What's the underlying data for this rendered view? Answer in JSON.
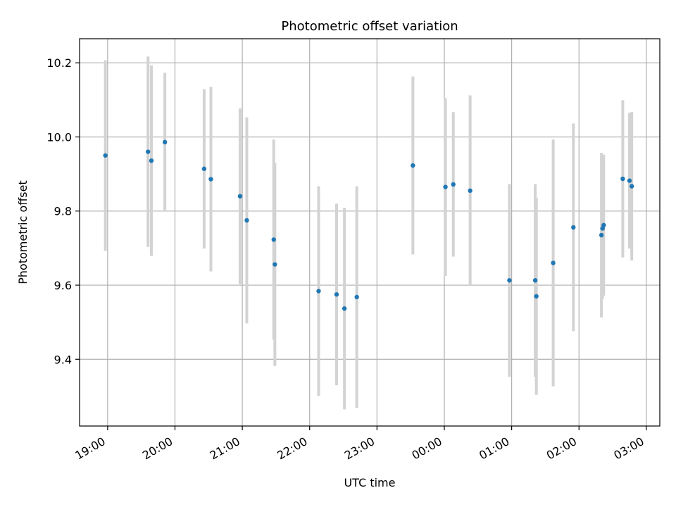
{
  "chart_data": {
    "type": "scatter",
    "title": "Photometric offset variation",
    "xlabel": "UTC time",
    "ylabel": "Photometric offset",
    "grid": true,
    "x_axis_type": "time",
    "xlim": [
      "18:35",
      "03:12"
    ],
    "ylim": [
      9.22,
      10.265
    ],
    "x_ticks": [
      "19:00",
      "20:00",
      "21:00",
      "22:00",
      "23:00",
      "00:00",
      "01:00",
      "02:00",
      "03:00"
    ],
    "y_ticks": [
      "9.4",
      "9.6",
      "9.8",
      "10.0",
      "10.2"
    ],
    "colors": {
      "point": "#1f77b4",
      "errorbar": "#d3d3d3",
      "grid": "#b0b0b0"
    },
    "series": [
      {
        "points": [
          {
            "x": "18:58",
            "y": 9.95,
            "err": 0.257
          },
          {
            "x": "19:36",
            "y": 9.96,
            "err": 0.257
          },
          {
            "x": "19:39",
            "y": 9.936,
            "err": 0.257
          },
          {
            "x": "19:51",
            "y": 9.986,
            "err": 0.187
          },
          {
            "x": "20:26",
            "y": 9.914,
            "err": 0.215
          },
          {
            "x": "20:32",
            "y": 9.886,
            "err": 0.249
          },
          {
            "x": "20:58",
            "y": 9.84,
            "err": 0.237
          },
          {
            "x": "21:04",
            "y": 9.775,
            "err": 0.278
          },
          {
            "x": "21:28",
            "y": 9.723,
            "err": 0.27
          },
          {
            "x": "21:29",
            "y": 9.656,
            "err": 0.274
          },
          {
            "x": "22:08",
            "y": 9.584,
            "err": 0.283
          },
          {
            "x": "22:24",
            "y": 9.575,
            "err": 0.245
          },
          {
            "x": "22:31",
            "y": 9.537,
            "err": 0.272
          },
          {
            "x": "22:42",
            "y": 9.568,
            "err": 0.299
          },
          {
            "x": "23:32",
            "y": 9.923,
            "err": 0.24
          },
          {
            "x": "00:01",
            "y": 9.865,
            "err": 0.24
          },
          {
            "x": "00:08",
            "y": 9.872,
            "err": 0.195
          },
          {
            "x": "00:23",
            "y": 9.855,
            "err": 0.257
          },
          {
            "x": "00:58",
            "y": 9.613,
            "err": 0.26
          },
          {
            "x": "01:21",
            "y": 9.613,
            "err": 0.26
          },
          {
            "x": "01:22",
            "y": 9.57,
            "err": 0.266
          },
          {
            "x": "01:37",
            "y": 9.66,
            "err": 0.333
          },
          {
            "x": "01:55",
            "y": 9.756,
            "err": 0.28
          },
          {
            "x": "02:20",
            "y": 9.735,
            "err": 0.222
          },
          {
            "x": "02:21",
            "y": 9.753,
            "err": 0.19
          },
          {
            "x": "02:22",
            "y": 9.762,
            "err": 0.19
          },
          {
            "x": "02:39",
            "y": 9.887,
            "err": 0.212
          },
          {
            "x": "02:45",
            "y": 9.882,
            "err": 0.183
          },
          {
            "x": "02:47",
            "y": 9.867,
            "err": 0.2
          }
        ]
      }
    ]
  }
}
